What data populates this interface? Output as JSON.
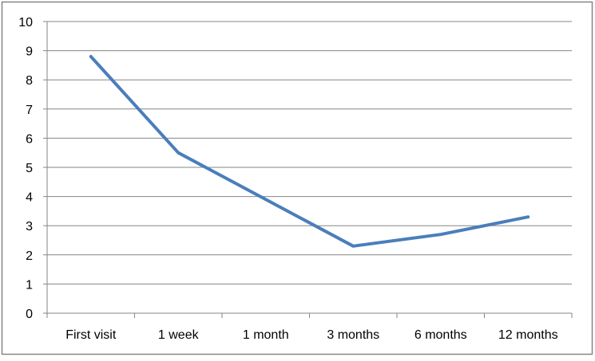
{
  "chart_data": {
    "type": "line",
    "categories": [
      "First visit",
      "1 week",
      "1 month",
      "3 months",
      "6 months",
      "12 months"
    ],
    "series": [
      {
        "values": [
          8.8,
          5.5,
          3.9,
          2.3,
          2.7,
          3.3
        ],
        "color": "#4a7ebb"
      }
    ],
    "ylim": [
      0,
      10
    ],
    "yticks": [
      "0",
      "1",
      "2",
      "3",
      "4",
      "5",
      "6",
      "7",
      "8",
      "9",
      "10"
    ],
    "grid": true,
    "legend": "none",
    "title": "",
    "xlabel": "",
    "ylabel": ""
  },
  "colors": {
    "gridline": "#868686",
    "axis": "#868686",
    "border": "#868686",
    "series": "#4a7ebb"
  }
}
